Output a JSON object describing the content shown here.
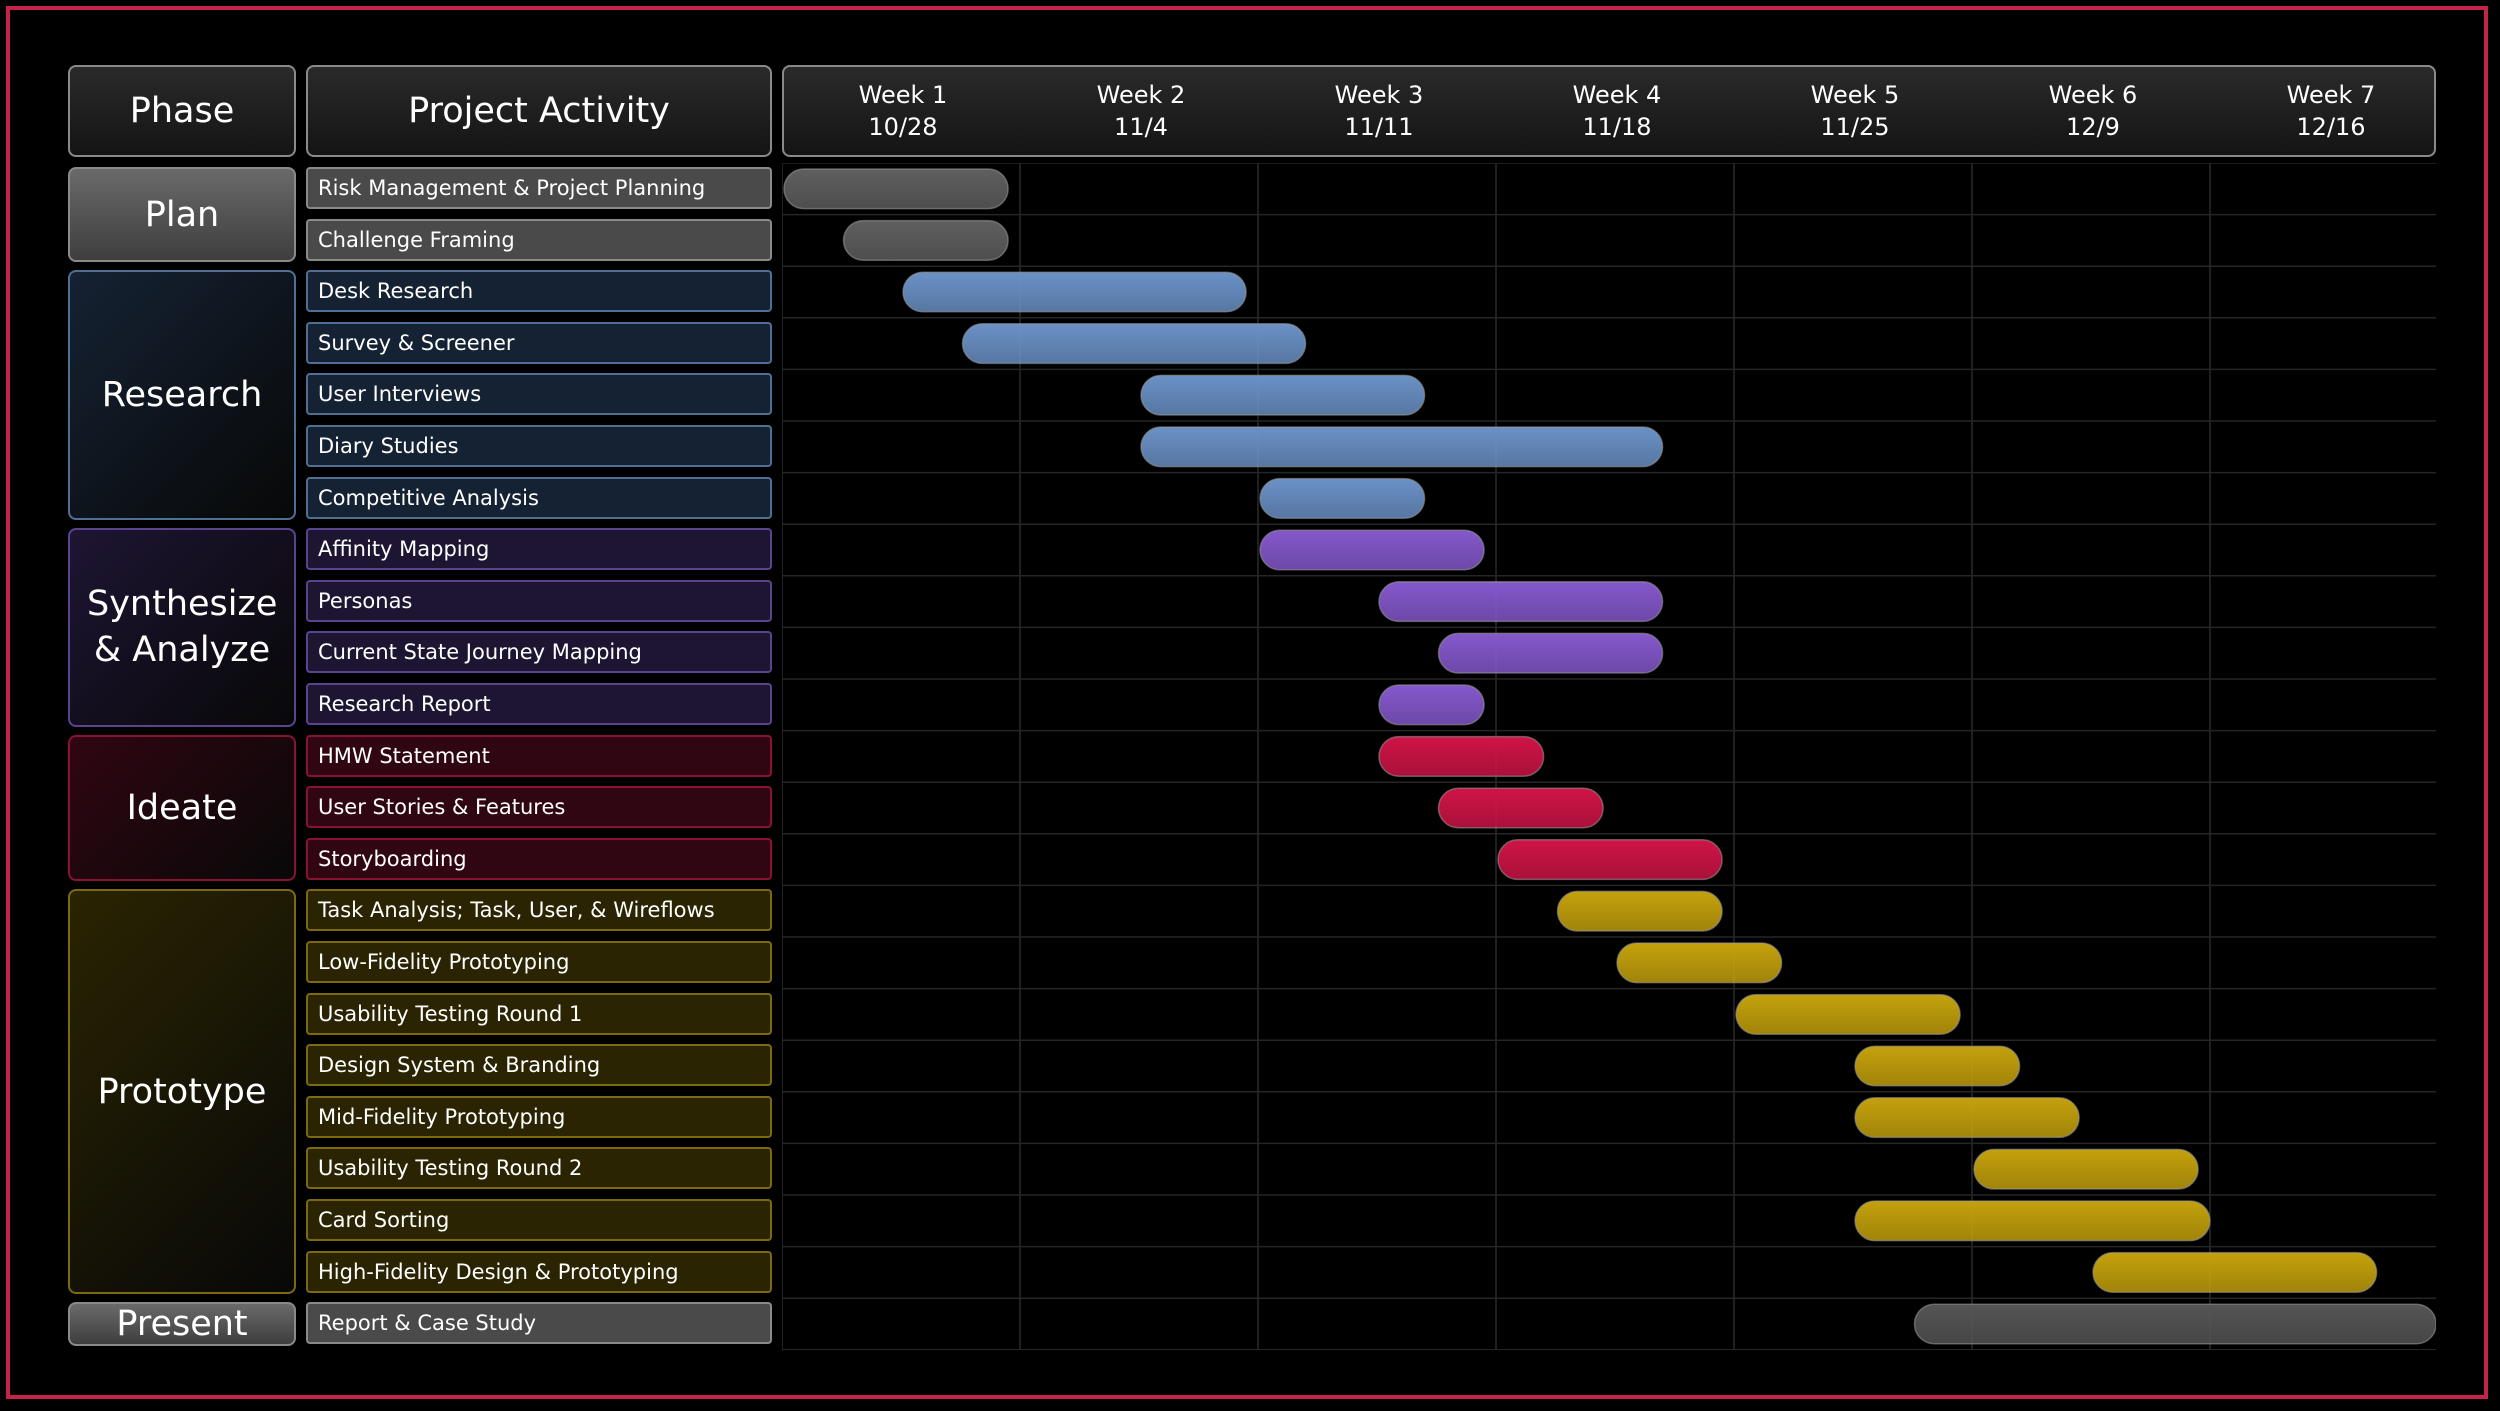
{
  "header": {
    "phase_label": "Phase",
    "activity_label": "Project Activity"
  },
  "chart_data": {
    "type": "gantt",
    "x_unit": "week",
    "xlim": [
      1,
      8
    ],
    "weeks": [
      {
        "label": "Week 1",
        "date": "10/28"
      },
      {
        "label": "Week 2",
        "date": "11/4"
      },
      {
        "label": "Week 3",
        "date": "11/11"
      },
      {
        "label": "Week 4",
        "date": "11/18"
      },
      {
        "label": "Week 5",
        "date": "11/25"
      },
      {
        "label": "Week 6",
        "date": "12/9"
      },
      {
        "label": "Week 7",
        "date": "12/16"
      }
    ],
    "grid": true,
    "phases": [
      {
        "name": "Plan",
        "color": "#5a5a5a",
        "bar_color": "#5f5f5f",
        "bg": "#4a4a4a",
        "border": "#8a8a8a",
        "tasks": [
          {
            "name": "Risk Management & Project Planning",
            "start": 1.0,
            "end": 1.95
          },
          {
            "name": "Challenge Framing",
            "start": 1.25,
            "end": 1.95
          }
        ]
      },
      {
        "name": "Research",
        "color": "#6d94c9",
        "bar_color": "#6a91c6",
        "bg": "#152233",
        "border": "#4f6f95",
        "tasks": [
          {
            "name": "Desk Research",
            "start": 1.5,
            "end": 2.95
          },
          {
            "name": "Survey & Screener",
            "start": 1.75,
            "end": 3.2
          },
          {
            "name": "User Interviews",
            "start": 2.5,
            "end": 3.7
          },
          {
            "name": "Diary Studies",
            "start": 2.5,
            "end": 4.7
          },
          {
            "name": "Competitive Analysis",
            "start": 3.0,
            "end": 3.7
          }
        ]
      },
      {
        "name": "Synthesize & Analyze",
        "color": "#8a5fd0",
        "bar_color": "#8558cc",
        "bg": "#1e1533",
        "border": "#5a4490",
        "tasks": [
          {
            "name": "Affinity Mapping",
            "start": 3.0,
            "end": 3.95
          },
          {
            "name": "Personas",
            "start": 3.5,
            "end": 4.7
          },
          {
            "name": "Current State Journey Mapping",
            "start": 3.75,
            "end": 4.7
          },
          {
            "name": "Research Report",
            "start": 3.5,
            "end": 3.95
          }
        ]
      },
      {
        "name": "Ideate",
        "color": "#d3144a",
        "bar_color": "#cf1447",
        "bg": "#300612",
        "border": "#8a1232",
        "tasks": [
          {
            "name": "HMW Statement",
            "start": 3.5,
            "end": 4.2
          },
          {
            "name": "User Stories & Features",
            "start": 3.75,
            "end": 4.45
          },
          {
            "name": "Storyboarding",
            "start": 4.0,
            "end": 4.95
          }
        ]
      },
      {
        "name": "Prototype",
        "color": "#c9a60c",
        "bar_color": "#c4a10c",
        "bg": "#2a2402",
        "border": "#7d6a0c",
        "tasks": [
          {
            "name": "Task Analysis; Task, User, & Wireflows",
            "start": 4.25,
            "end": 4.95
          },
          {
            "name": "Low-Fidelity Prototyping",
            "start": 4.5,
            "end": 5.2
          },
          {
            "name": "Usability Testing Round 1",
            "start": 5.0,
            "end": 5.95
          },
          {
            "name": "Design System & Branding",
            "start": 5.5,
            "end": 6.2
          },
          {
            "name": "Mid-Fidelity Prototyping",
            "start": 5.5,
            "end": 6.45
          },
          {
            "name": "Usability Testing Round 2",
            "start": 6.0,
            "end": 6.95
          },
          {
            "name": "Card Sorting",
            "start": 5.5,
            "end": 7.0
          },
          {
            "name": "High-Fidelity Design & Prototyping",
            "start": 6.5,
            "end": 7.7
          }
        ]
      },
      {
        "name": "Present",
        "color": "#555555",
        "bar_color": "#555555",
        "bg": "#3a3a3a",
        "border": "#8a8a8a",
        "tasks": [
          {
            "name": "Report & Case Study",
            "start": 5.75,
            "end": 7.95
          }
        ]
      }
    ]
  }
}
